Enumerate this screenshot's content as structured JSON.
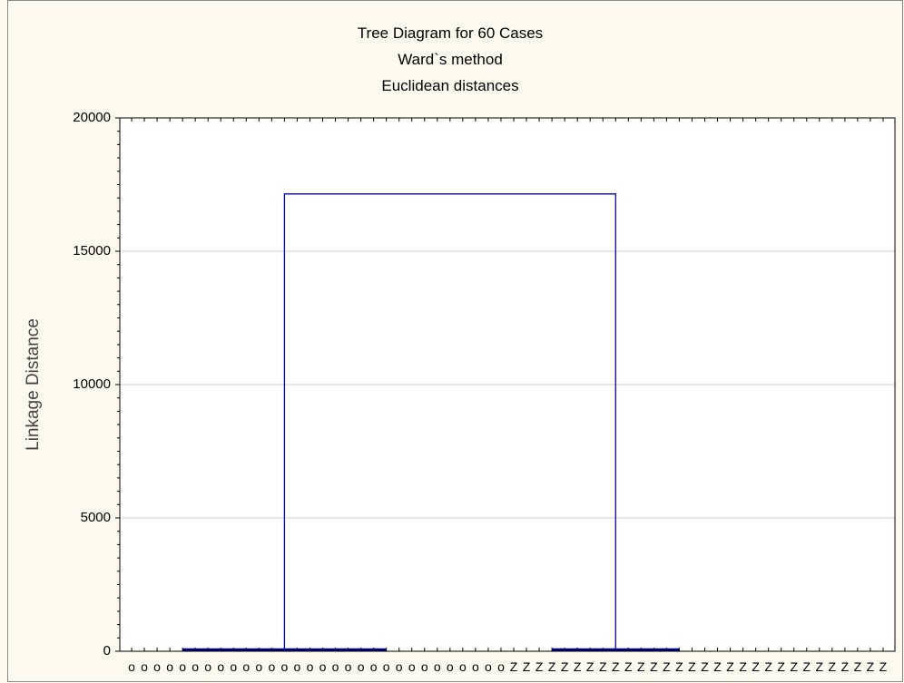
{
  "chart_data": {
    "type": "dendrogram",
    "title": "Tree Diagram for 60 Cases",
    "subtitle": [
      "Ward`s method",
      "Euclidean distances"
    ],
    "ylabel": "Linkage Distance",
    "categories": [
      "o",
      "o",
      "o",
      "o",
      "o",
      "o",
      "o",
      "o",
      "o",
      "o",
      "o",
      "o",
      "o",
      "o",
      "o",
      "o",
      "o",
      "o",
      "o",
      "o",
      "o",
      "o",
      "o",
      "o",
      "o",
      "o",
      "o",
      "o",
      "o",
      "o",
      "Z",
      "Z",
      "Z",
      "Z",
      "Z",
      "Z",
      "Z",
      "Z",
      "Z",
      "Z",
      "Z",
      "Z",
      "Z",
      "Z",
      "Z",
      "Z",
      "Z",
      "Z",
      "Z",
      "Z",
      "Z",
      "Z",
      "Z",
      "Z",
      "Z",
      "Z",
      "Z",
      "Z",
      "Z",
      "Z"
    ],
    "links": [
      {
        "x": [
          4,
          20
        ],
        "height": 60
      },
      {
        "x": [
          33,
          43
        ],
        "height": 60
      },
      {
        "x": [
          12,
          38
        ],
        "height": 17150
      }
    ],
    "color": "#0000cc",
    "ylim": [
      0,
      20000
    ],
    "yticks": [
      0,
      5000,
      10000,
      15000,
      20000
    ],
    "grid": true
  }
}
